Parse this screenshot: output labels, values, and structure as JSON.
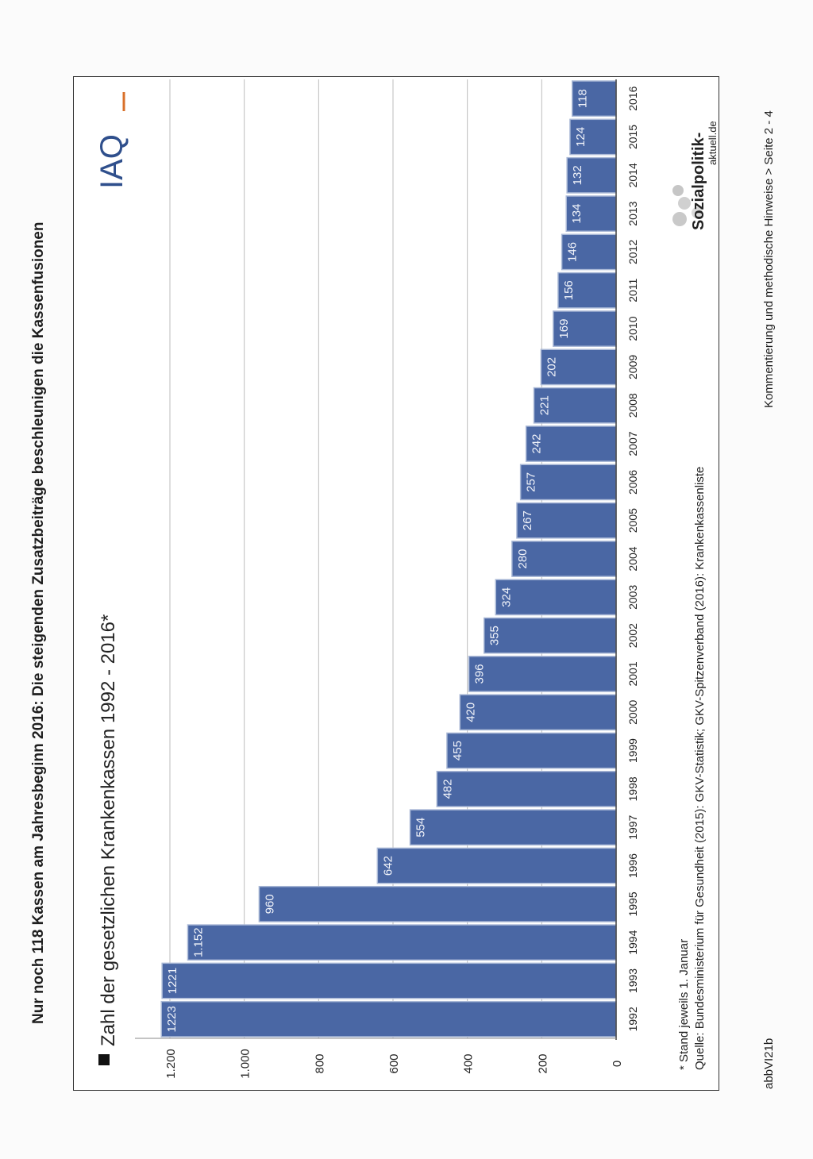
{
  "page": {
    "title": "Nur noch 118 Kassen am Jahresbeginn 2016: Die steigenden Zusatzbeiträge beschleunigen die Kassenfusionen",
    "code": "abbVI21b",
    "footer": "Kommentierung und methodische Hinweise > Seite 2 - 4"
  },
  "logos": {
    "iaq": "IAQ",
    "sozialpolitik": "Sozialpolitik-",
    "sozialpolitik_sub": "aktuell.de"
  },
  "chart_data": {
    "type": "bar",
    "title": "Zahl der gesetzlichen Krankenkassen 1992 - 2016*",
    "footnote": "* Stand jeweils 1. Januar",
    "source": "Quelle: Bundesministerium für Gesundheit (2015): GKV-Statistik; GKV-Spitzenverband (2016): Krankenkassenliste",
    "categories": [
      "1992",
      "1993",
      "1994",
      "1995",
      "1996",
      "1997",
      "1998",
      "1999",
      "2000",
      "2001",
      "2002",
      "2003",
      "2004",
      "2005",
      "2006",
      "2007",
      "2008",
      "2009",
      "2010",
      "2011",
      "2012",
      "2013",
      "2014",
      "2015",
      "2016"
    ],
    "values": [
      1223,
      1221,
      1152,
      960,
      642,
      554,
      482,
      455,
      420,
      396,
      355,
      324,
      280,
      267,
      257,
      242,
      221,
      202,
      169,
      156,
      146,
      134,
      132,
      124,
      118
    ],
    "data_labels": [
      "1223",
      "1221",
      "1.152",
      "960",
      "642",
      "554",
      "482",
      "455",
      "420",
      "396",
      "355",
      "324",
      "280",
      "267",
      "257",
      "242",
      "221",
      "202",
      "169",
      "156",
      "146",
      "134",
      "132",
      "124",
      "118"
    ],
    "ylim": [
      0,
      1200
    ],
    "yticks": [
      0,
      200,
      400,
      600,
      800,
      1000,
      1200
    ],
    "ytick_labels": [
      "0",
      "200",
      "400",
      "600",
      "800",
      "1.000",
      "1.200"
    ],
    "grid": true,
    "colors": {
      "bar": "#4a67a4",
      "bar_edge": "#a9b8d6",
      "grid": "#bcbcbc",
      "axis": "#444444"
    }
  }
}
